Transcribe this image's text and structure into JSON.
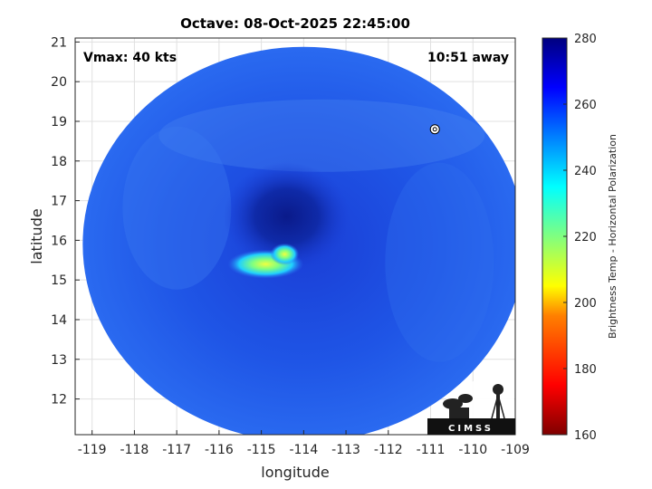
{
  "chart_data": {
    "type": "heatmap",
    "title": "Octave: 08-Oct-2025 22:45:00",
    "xlabel": "longitude",
    "ylabel": "latitude",
    "xlim": [
      -119.4,
      -109
    ],
    "ylim": [
      11.1,
      21.1
    ],
    "x_ticks": [
      -119,
      -118,
      -117,
      -116,
      -115,
      -114,
      -113,
      -112,
      -111,
      -110,
      -109
    ],
    "y_ticks": [
      12,
      13,
      14,
      15,
      16,
      17,
      18,
      19,
      20,
      21
    ],
    "grid": true,
    "annotations": {
      "vmax": "Vmax: 40 kts",
      "time_offset": "10:51 away"
    },
    "storm_center": {
      "lon": -114.4,
      "lat": 16.6
    },
    "swath_center": {
      "lon": -114.0,
      "lat": 15.9
    },
    "colorbar": {
      "label": "Brightness Temp - Horizontal Polarization",
      "range": [
        160,
        280
      ],
      "ticks": [
        160,
        180,
        200,
        220,
        240,
        260,
        280
      ],
      "colors": [
        "#7f0000",
        "#ff0000",
        "#ff8000",
        "#ffff00",
        "#80ff80",
        "#00ffff",
        "#0080ff",
        "#0000ff",
        "#00007f"
      ]
    }
  },
  "logo": {
    "text": "CIMSS",
    "icon": "cimss-logo-icon"
  }
}
